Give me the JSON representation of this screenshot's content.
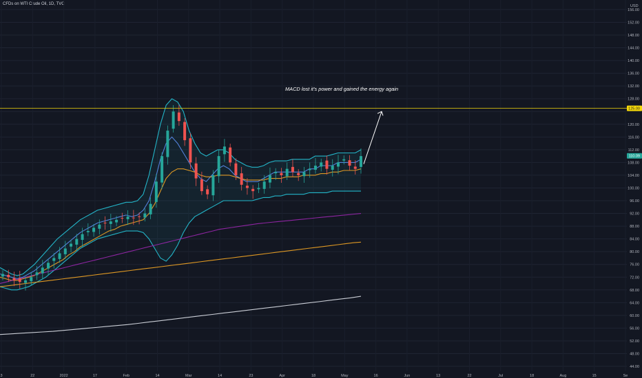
{
  "header": {
    "symbol": "CFDs on WTI Crude Oil, 1D, TVC"
  },
  "axis": {
    "currency": "USD"
  },
  "chart_data": {
    "type": "candlestick",
    "instrument": "CFDs on WTI Crude Oil",
    "timeframe": "1D",
    "y_ticks": [
      44,
      48,
      52,
      56,
      60,
      64,
      68,
      72,
      76,
      80,
      84,
      88,
      92,
      96,
      100,
      104,
      108,
      112,
      116,
      120,
      124,
      128,
      132,
      136,
      140,
      144,
      148,
      152,
      156
    ],
    "y_ticks_labels": [
      "44.00",
      "48.00",
      "52.00",
      "56.00",
      "60.00",
      "64.00",
      "68.00",
      "72.00",
      "76.00",
      "80.00",
      "84.00",
      "88.00",
      "92.00",
      "96.00",
      "100.00",
      "104.00",
      "108.00",
      "112.00",
      "116.00",
      "120.00",
      "",
      "128.00",
      "132.00",
      "136.00",
      "140.00",
      "144.00",
      "148.00",
      "152.00",
      "156.00"
    ],
    "ylim": [
      42.5,
      159
    ],
    "x_tick_labels": [
      "3",
      "22",
      "2022",
      "17",
      "Feb",
      "14",
      "Mar",
      "14",
      "23",
      "Apr",
      "18",
      "May",
      "16",
      "Jun",
      "13",
      "22",
      "Jul",
      "18",
      "Aug",
      "15",
      "Se"
    ],
    "horizontal_level": {
      "value": 125,
      "label": "125.00",
      "color": "#f5d90a"
    },
    "last_price": {
      "value": 110.09,
      "label": "110.09",
      "color": "#26a69a"
    },
    "annotation": "MACD lost it's power and gained the energy again",
    "arrow": {
      "from_value": 107.5,
      "to_value": 124,
      "direction": "up"
    },
    "candles": {
      "up_color": "#26a69a",
      "down_color": "#ef5350",
      "close_path": [
        73,
        72,
        71,
        70.5,
        71,
        72,
        73.5,
        75,
        76.5,
        78,
        79.5,
        81,
        82.5,
        84,
        85.5,
        86.5,
        87.5,
        88.5,
        89,
        89.5,
        90,
        90.5,
        91,
        90.5,
        91,
        92,
        95,
        102,
        110,
        118,
        124,
        121,
        115,
        108,
        103,
        99,
        98,
        104,
        110,
        113,
        108,
        104,
        101,
        100,
        99,
        100,
        102,
        104,
        105,
        104,
        106,
        105,
        104,
        105,
        106,
        107,
        108,
        106,
        107,
        108,
        109,
        107,
        106,
        110
      ]
    },
    "series": [
      {
        "name": "",
        "color": "#5b8def",
        "values": [
          73,
          72.5,
          72,
          71.5,
          72,
          73,
          74,
          75.5,
          77,
          78.5,
          80,
          81.5,
          83,
          84.5,
          86,
          87,
          88,
          89,
          89.5,
          90,
          90.5,
          91,
          91.5,
          91,
          91.5,
          93,
          96,
          102,
          109,
          114,
          116,
          114,
          111,
          108,
          105,
          103,
          102,
          104,
          106,
          107,
          106,
          104,
          103,
          102,
          102,
          102,
          103,
          104,
          105,
          105,
          105,
          105,
          105,
          105,
          106,
          106,
          107,
          107,
          107,
          108,
          108,
          108,
          108,
          109
        ]
      },
      {
        "name": "",
        "color": "#f5a623",
        "values": [
          72,
          71.5,
          71,
          71,
          71.5,
          72,
          72.5,
          73.5,
          74.5,
          75.5,
          76.5,
          77.5,
          79,
          80,
          81.5,
          82.5,
          83.5,
          84.5,
          85.5,
          86.5,
          87,
          88,
          88.5,
          89,
          89.5,
          90,
          92,
          95,
          99,
          103,
          105,
          106,
          106,
          105.5,
          105,
          104,
          103.5,
          103.5,
          104,
          104,
          104,
          103.5,
          103,
          102.5,
          102.5,
          102.5,
          102.5,
          103,
          103,
          103,
          103.5,
          103.5,
          103.5,
          104,
          104,
          104,
          104.5,
          104.5,
          105,
          105,
          105.5,
          105.5,
          105.5,
          106
        ]
      },
      {
        "name": "",
        "color": "#26c6da",
        "values": [
          75,
          74,
          73,
          72.5,
          73,
          74.5,
          76,
          78,
          80,
          82,
          84,
          85.5,
          87,
          88.5,
          90,
          91,
          92,
          93,
          93.5,
          94,
          94.5,
          95,
          95.5,
          95.5,
          96,
          98,
          104,
          112,
          120,
          126,
          128,
          127,
          124,
          118,
          114,
          111,
          110,
          111,
          112,
          112,
          111,
          109,
          108,
          107,
          106.5,
          106.5,
          107,
          108,
          108.5,
          108.5,
          108.5,
          109,
          109,
          109,
          109,
          110,
          110,
          110,
          110.5,
          111,
          111,
          111,
          111,
          112
        ]
      },
      {
        "name": "",
        "color": "#26c6da",
        "values": [
          69,
          68.5,
          68,
          68,
          68.5,
          69,
          70,
          71,
          72,
          73.5,
          75,
          76.5,
          78,
          79.5,
          81,
          82,
          83,
          84,
          84.5,
          85,
          85.5,
          86,
          86.5,
          86.5,
          86.5,
          86,
          84,
          81,
          78,
          77,
          79,
          82,
          86,
          89,
          91,
          92,
          93,
          94,
          95,
          96,
          96,
          96,
          96,
          96,
          96,
          96.5,
          97,
          97,
          97.5,
          97.5,
          98,
          98,
          98,
          98,
          98.5,
          98.5,
          98.5,
          98.5,
          99,
          99,
          99,
          99,
          99,
          99
        ]
      },
      {
        "name": "",
        "color": "#9c27b0",
        "values": [
          70,
          70.5,
          71,
          71.5,
          72,
          72.5,
          73,
          73.5,
          74,
          74.5,
          75,
          75.5,
          76,
          76.5,
          77,
          77.5,
          78,
          78.5,
          79,
          79.5,
          80,
          80.5,
          81,
          81.5,
          82,
          82.5,
          83,
          83.5,
          84,
          84.5,
          85,
          85.5,
          86,
          86.5,
          87,
          87.3,
          87.6,
          87.9,
          88.2,
          88.5,
          88.8,
          89,
          89.2,
          89.4,
          89.6,
          89.8,
          90,
          90.2,
          90.4,
          90.6,
          90.8,
          91,
          91.2,
          91.4,
          91.6,
          91.8,
          92
        ]
      },
      {
        "name": "",
        "color": "#f5a623",
        "values": [
          69,
          69.3,
          69.6,
          69.9,
          70.2,
          70.5,
          70.8,
          71.1,
          71.4,
          71.7,
          72,
          72.3,
          72.6,
          72.9,
          73.2,
          73.5,
          73.8,
          74.1,
          74.4,
          74.7,
          75,
          75.3,
          75.6,
          75.9,
          76.2,
          76.5,
          76.8,
          77.1,
          77.4,
          77.7,
          78,
          78.3,
          78.6,
          78.9,
          79.2,
          79.5,
          79.8,
          80.1,
          80.4,
          80.7,
          81,
          81.3,
          81.6,
          81.9,
          82.2,
          82.5,
          82.8,
          83
        ]
      },
      {
        "name": "",
        "color": "#e0e3eb",
        "values": [
          54,
          54.2,
          54.4,
          54.6,
          54.8,
          55,
          55.3,
          55.6,
          55.9,
          56.2,
          56.5,
          56.8,
          57.1,
          57.5,
          57.9,
          58.3,
          58.7,
          59.1,
          59.5,
          59.9,
          60.3,
          60.7,
          61.1,
          61.5,
          61.9,
          62.3,
          62.7,
          63.1,
          63.5,
          63.9,
          64.3,
          64.7,
          65.1,
          65.5,
          66
        ]
      }
    ]
  }
}
